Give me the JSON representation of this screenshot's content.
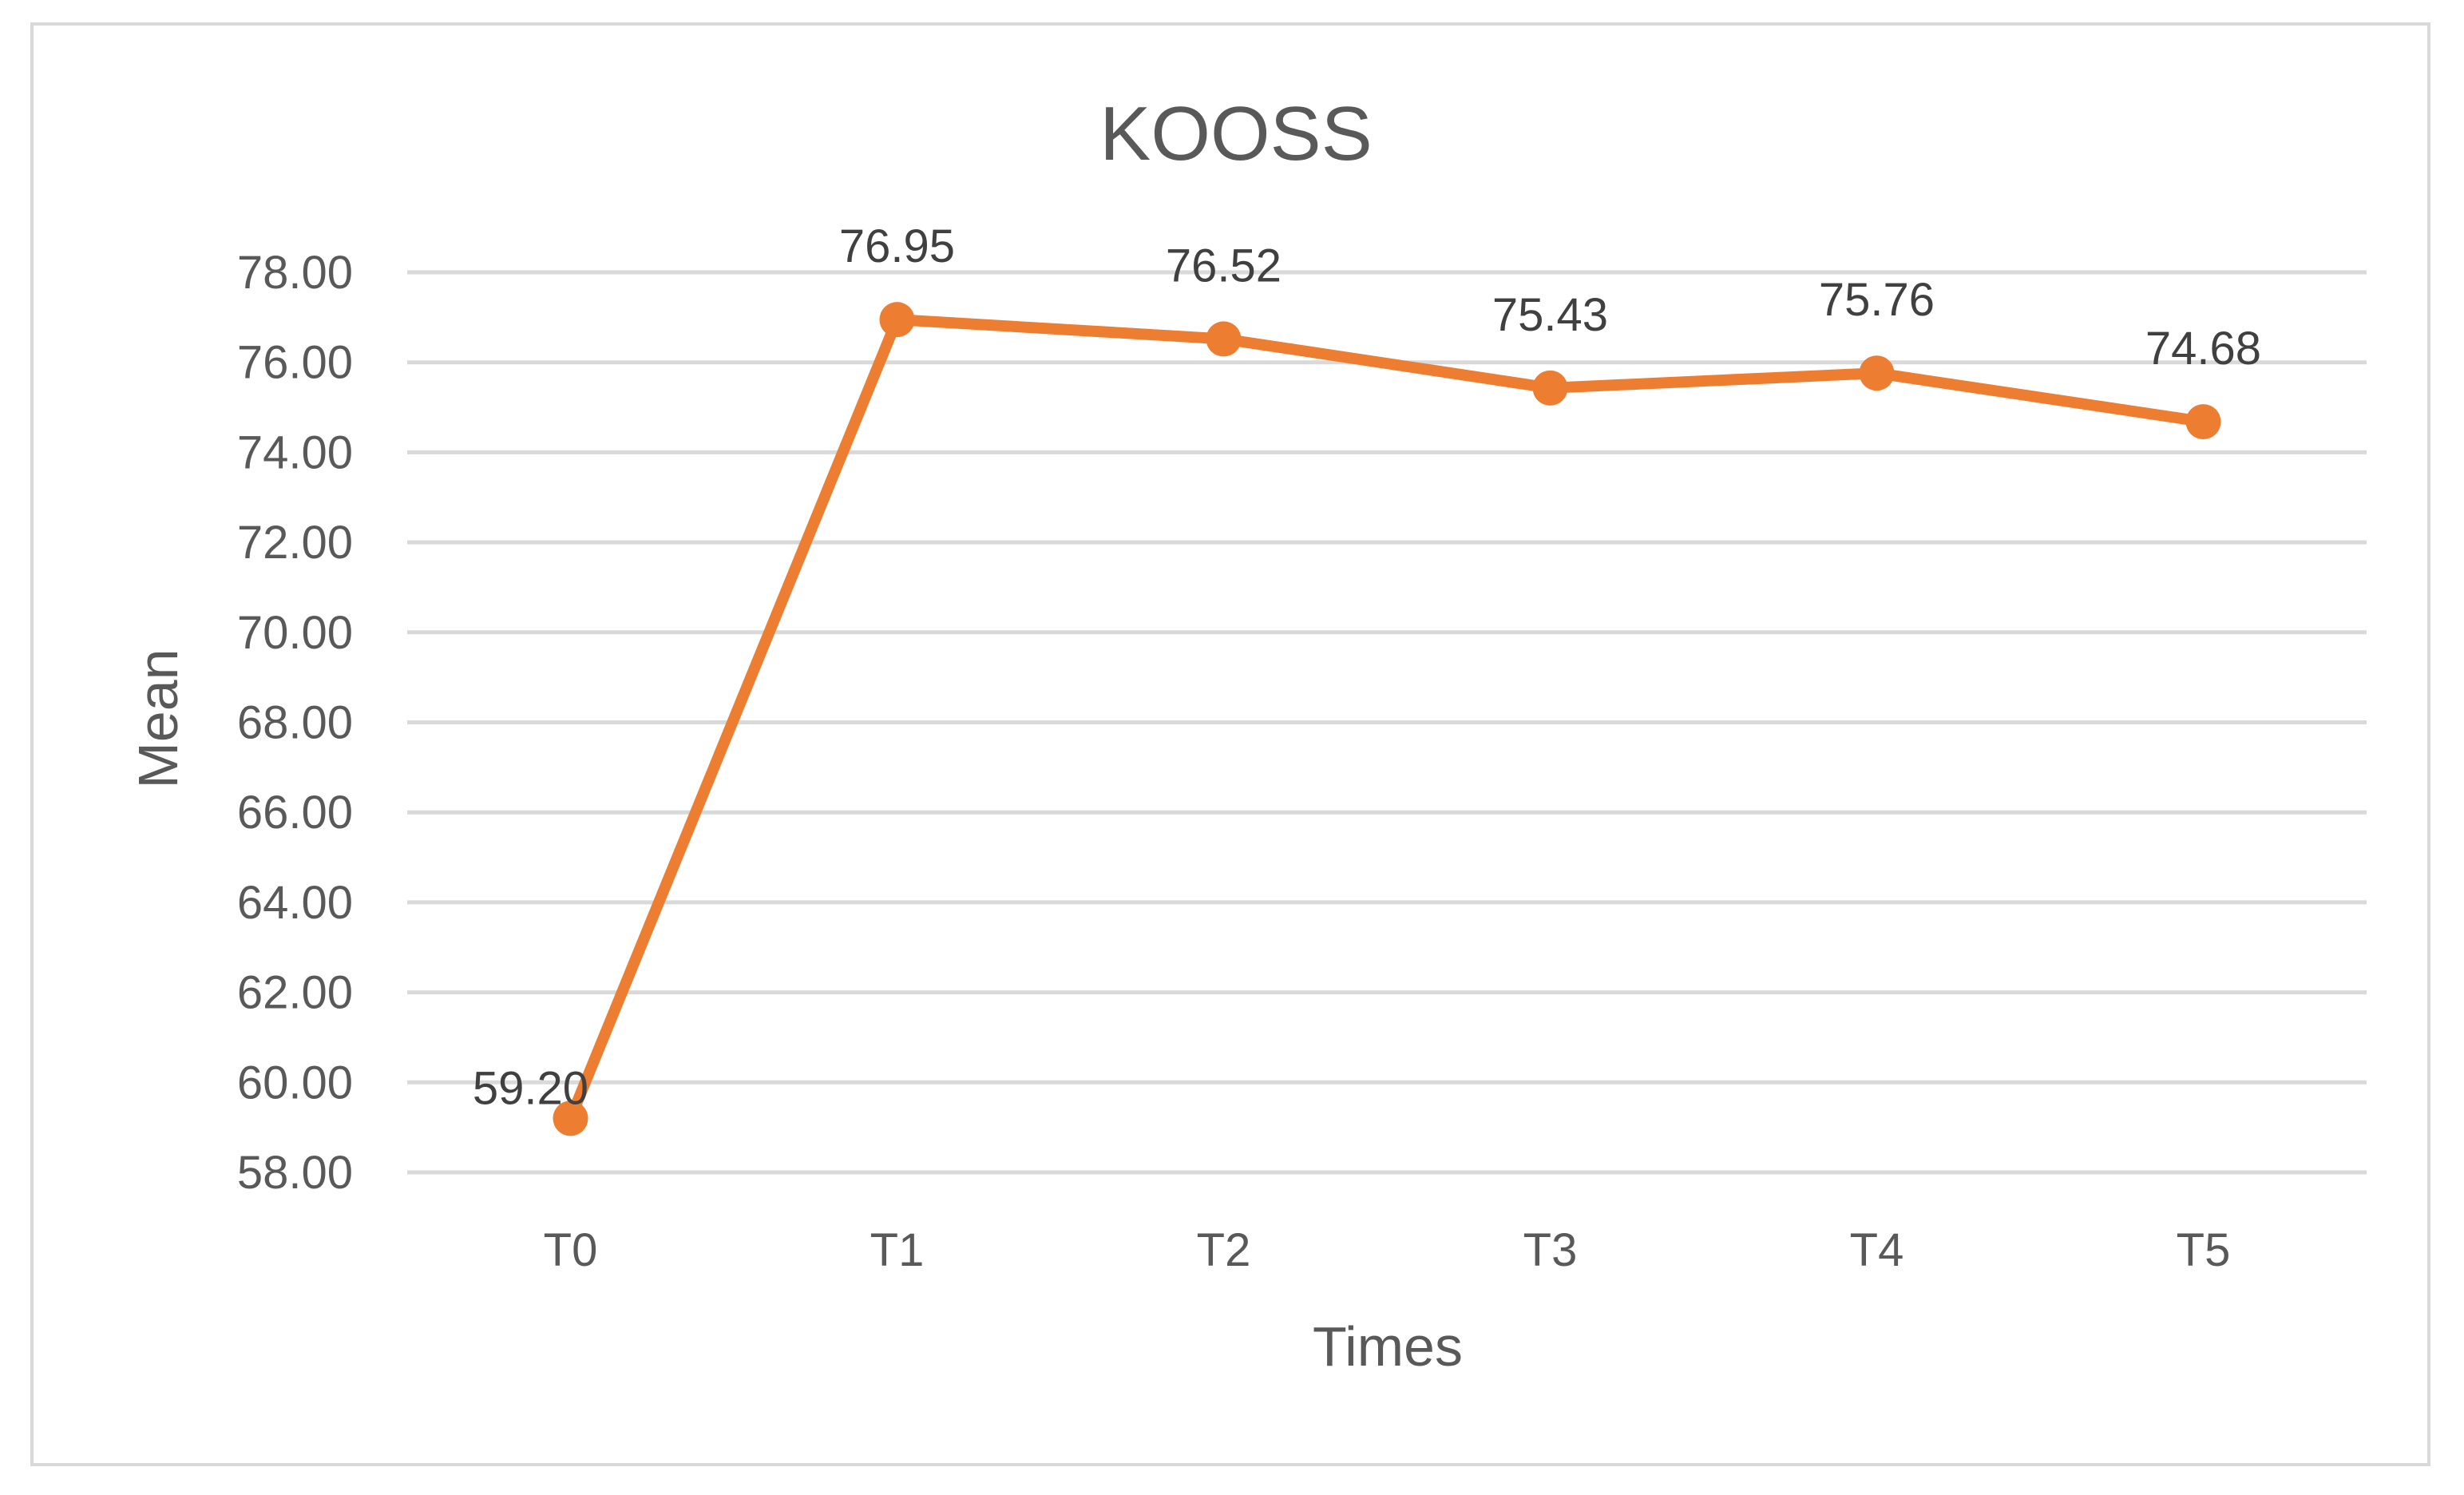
{
  "chart_data": {
    "type": "line",
    "title": "KOOSS",
    "xlabel": "Times",
    "ylabel": "Mean",
    "categories": [
      "T0",
      "T1",
      "T2",
      "T3",
      "T4",
      "T5"
    ],
    "series": [
      {
        "values": [
          59.2,
          76.95,
          76.52,
          75.43,
          75.76,
          74.68
        ],
        "data_labels": [
          "59.20",
          "76.95",
          "76.52",
          "75.43",
          "75.76",
          "74.68"
        ],
        "color": "#ed7d31"
      }
    ],
    "ylim": [
      58,
      78
    ],
    "yticks": [
      58,
      60,
      62,
      64,
      66,
      68,
      70,
      72,
      74,
      76,
      78
    ],
    "ytick_labels": [
      "58.00",
      "60.00",
      "62.00",
      "64.00",
      "66.00",
      "68.00",
      "70.00",
      "72.00",
      "74.00",
      "76.00",
      "78.00"
    ],
    "grid": true,
    "legend": "none",
    "gridline_color": "#d9d9d9"
  }
}
